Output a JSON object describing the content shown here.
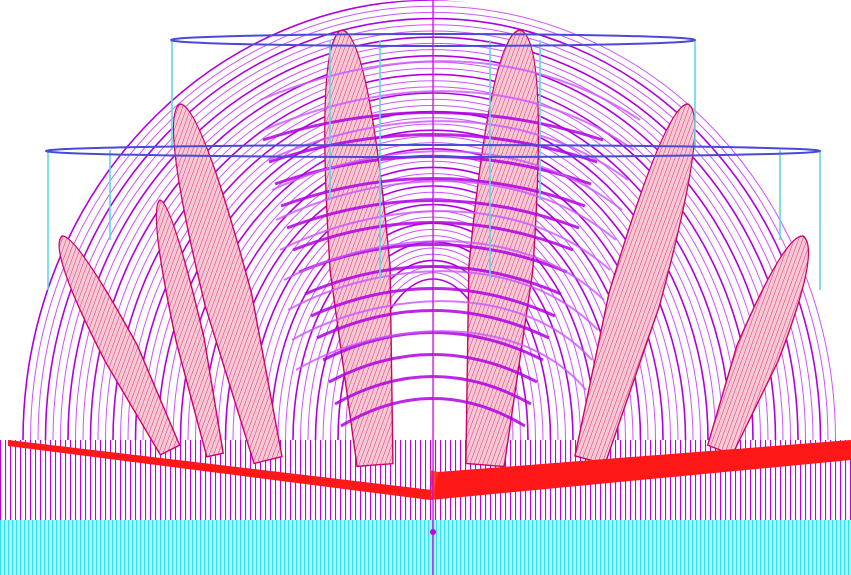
{
  "scene": {
    "background": "#ffffff",
    "colors": {
      "arc_primary": "#b000e0",
      "arc_secondary": "#cc55ff",
      "blade_fill": "#f2b8c6",
      "blade_stroke": "#d0006a",
      "red_plane": "#ff1010",
      "rim": "#4a4ad8",
      "post": "#5fd8e8",
      "base_cyan": "#44e6f0",
      "base_magenta": "#c000e8",
      "axis": "#c000e8",
      "axis_center": "#f0a000"
    },
    "blade_count": 7,
    "rim_rings": [
      "upper-rim",
      "lower-rim"
    ],
    "icons": [
      "center-axis-marker"
    ]
  }
}
